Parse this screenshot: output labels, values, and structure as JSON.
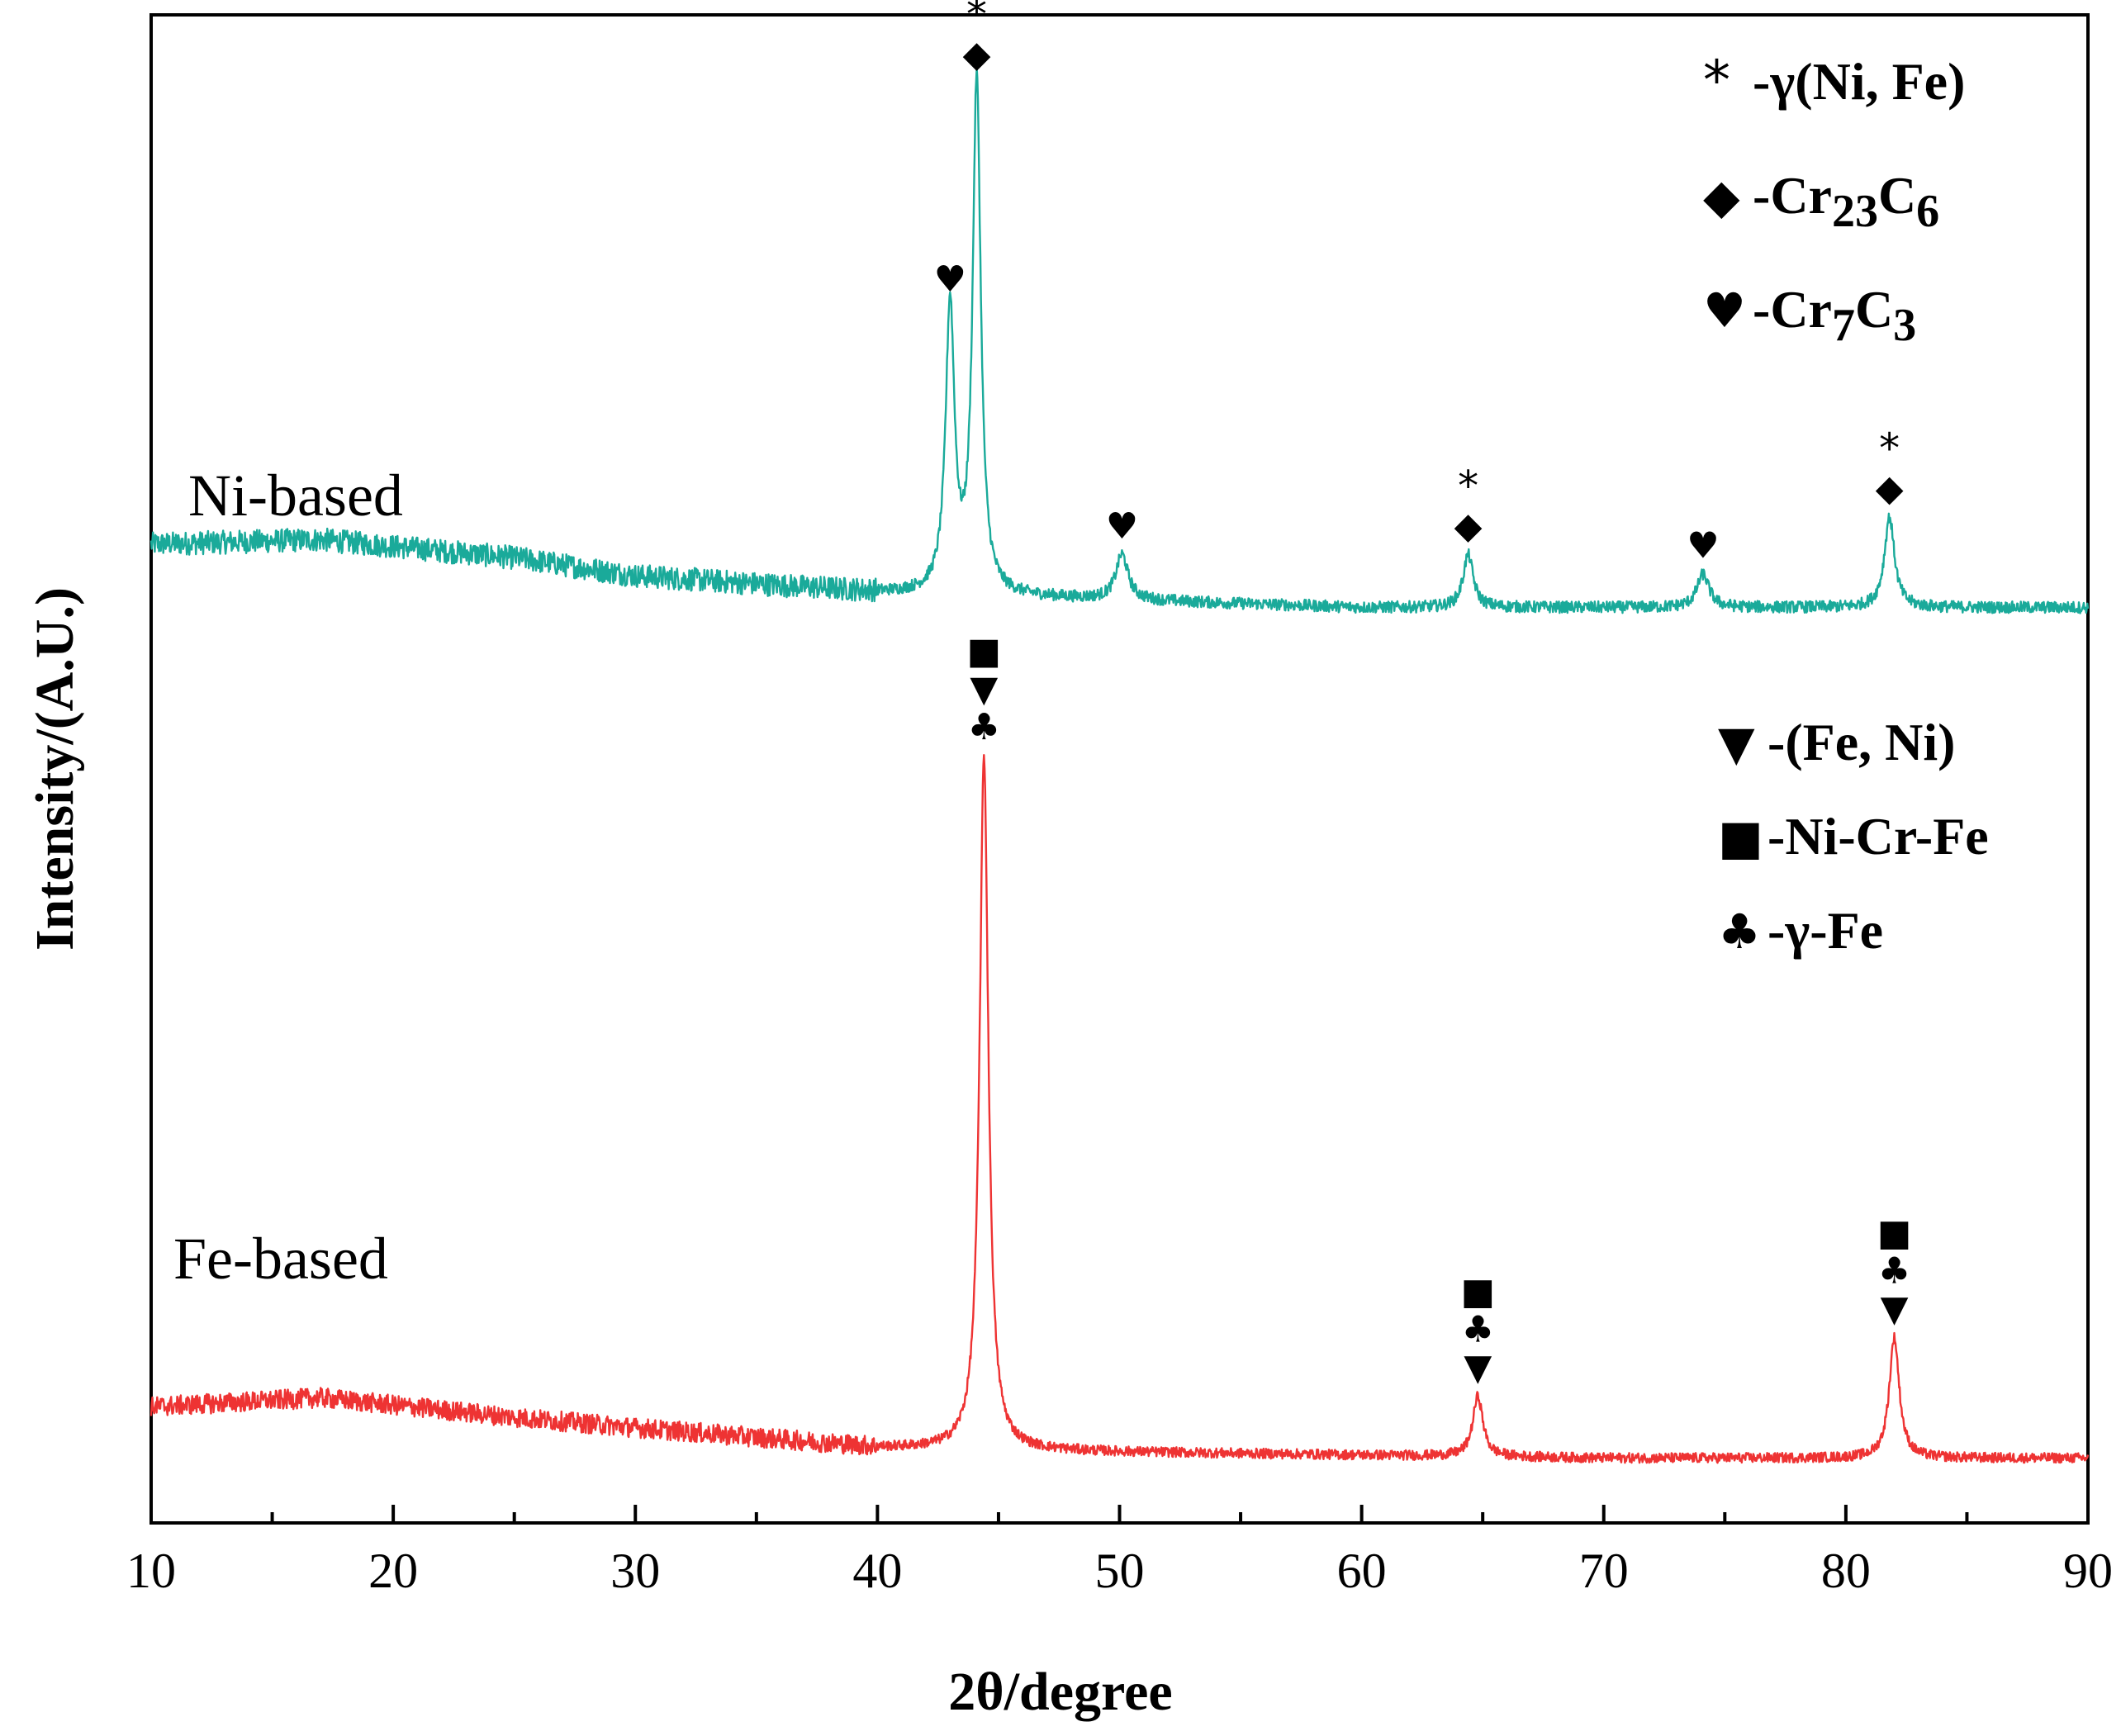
{
  "chart_data": {
    "type": "line",
    "title": "",
    "xlabel": "2θ/degree",
    "ylabel": "Intensity/(A.U.)",
    "xlim": [
      10,
      90
    ],
    "xticks": [
      10,
      20,
      30,
      40,
      50,
      60,
      70,
      80,
      90
    ],
    "xtick_labels": [
      "10",
      "20",
      "30",
      "40",
      "50",
      "60",
      "70",
      "80",
      "90"
    ],
    "ylim": [
      0,
      100
    ],
    "series": [
      {
        "name": "Ni-based",
        "color": "#1aaa9a",
        "baseline_points": [
          [
            10,
            64.9
          ],
          [
            17,
            65.2
          ],
          [
            25,
            64.0
          ],
          [
            30,
            62.8
          ],
          [
            40,
            61.7
          ],
          [
            60,
            60.7
          ],
          [
            90,
            60.7
          ]
        ],
        "noise": 1.3,
        "peaks": [
          {
            "x": 43.0,
            "height": 19.0,
            "width": 0.22,
            "markers": [
              "♥"
            ]
          },
          {
            "x": 44.1,
            "height": 34.0,
            "width": 0.2,
            "markers": [
              "*",
              "◆"
            ]
          },
          {
            "x": 50.1,
            "height": 3.0,
            "width": 0.3,
            "markers": [
              "♥"
            ]
          },
          {
            "x": 64.4,
            "height": 3.5,
            "width": 0.25,
            "markers": [
              "*",
              "◆"
            ]
          },
          {
            "x": 74.1,
            "height": 2.2,
            "width": 0.3,
            "markers": [
              "♥"
            ]
          },
          {
            "x": 81.8,
            "height": 6.0,
            "width": 0.25,
            "markers": [
              "*",
              "◆"
            ]
          }
        ]
      },
      {
        "name": "Fe-based",
        "color": "#ee3333",
        "baseline_points": [
          [
            10,
            7.7
          ],
          [
            17,
            8.3
          ],
          [
            25,
            7.0
          ],
          [
            30,
            6.3
          ],
          [
            40,
            5.0
          ],
          [
            50,
            4.7
          ],
          [
            70,
            4.3
          ],
          [
            90,
            4.3
          ]
        ],
        "noise": 1.1,
        "peaks": [
          {
            "x": 44.4,
            "height": 46.0,
            "width": 0.22,
            "markers": [
              "■",
              "▼",
              "♣"
            ]
          },
          {
            "x": 64.8,
            "height": 4.0,
            "width": 0.25,
            "markers": [
              "■",
              "♣",
              "▼"
            ]
          },
          {
            "x": 82.0,
            "height": 8.0,
            "width": 0.25,
            "markers": [
              "■",
              "♣",
              "▼"
            ]
          }
        ]
      }
    ],
    "legend": [
      {
        "symbol": "*",
        "text": "-γ(Ni, Fe)"
      },
      {
        "symbol": "◆",
        "text": "-Cr",
        "sub1": "23",
        "mid": "C",
        "sub2": "6"
      },
      {
        "symbol": "♥",
        "text": "-Cr",
        "sub1": "7",
        "mid": "C",
        "sub2": "3"
      },
      {
        "symbol": "▼",
        "text": "-(Fe, Ni)"
      },
      {
        "symbol": "■",
        "text": "-Ni-Cr-Fe"
      },
      {
        "symbol": "♣",
        "text": "-γ-Fe"
      }
    ]
  }
}
